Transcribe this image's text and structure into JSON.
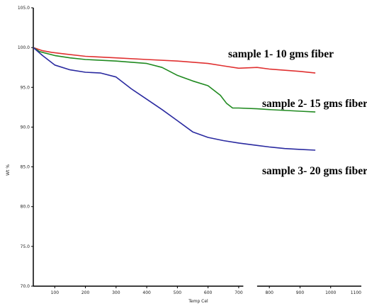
{
  "chart_data": {
    "type": "line",
    "title": "",
    "xlabel": "Temp Cel",
    "ylabel": "Wt %",
    "xlim": [
      30,
      1100
    ],
    "ylim": [
      70.0,
      105.0
    ],
    "x_ticks": [
      100,
      200,
      300,
      400,
      500,
      600,
      700,
      800,
      900,
      1000,
      1100
    ],
    "y_ticks": [
      70.0,
      75.0,
      80.0,
      85.0,
      90.0,
      95.0,
      100.0,
      105.0
    ],
    "x_tick_labels": [
      "100",
      "200",
      "300",
      "400",
      "500",
      "600",
      "700",
      "800",
      "900",
      "1000",
      "1100"
    ],
    "y_tick_labels": [
      "70.0",
      "75.0",
      "80.0",
      "85.0",
      "90.0",
      "95.0",
      "100.0",
      "105.0"
    ],
    "grid": false,
    "legend": "none",
    "axis_break": [
      715,
      760
    ],
    "series": [
      {
        "name": "sample 1- 10 gms fiber",
        "color": "#e03030",
        "x": [
          30,
          60,
          90,
          130,
          200,
          300,
          400,
          500,
          600,
          650,
          700,
          760,
          800,
          900,
          950
        ],
        "y": [
          100.0,
          99.6,
          99.4,
          99.2,
          98.9,
          98.7,
          98.5,
          98.3,
          98.0,
          97.7,
          97.4,
          97.5,
          97.3,
          97.0,
          96.8
        ]
      },
      {
        "name": "sample 2- 15 gms fiber",
        "color": "#208a20",
        "x": [
          30,
          50,
          100,
          150,
          200,
          300,
          400,
          450,
          500,
          550,
          600,
          640,
          660,
          680,
          700,
          760,
          800,
          900,
          950
        ],
        "y": [
          100.0,
          99.5,
          99.0,
          98.7,
          98.5,
          98.3,
          98.0,
          97.5,
          96.5,
          95.8,
          95.2,
          94.0,
          93.0,
          92.4,
          92.4,
          92.3,
          92.2,
          92.0,
          91.9
        ]
      },
      {
        "name": "sample 3- 20 gms fiber",
        "color": "#2a2aa0",
        "x": [
          30,
          60,
          100,
          150,
          200,
          250,
          300,
          350,
          400,
          450,
          500,
          550,
          600,
          650,
          700,
          760,
          800,
          850,
          900,
          950
        ],
        "y": [
          100.0,
          99.0,
          97.8,
          97.2,
          96.9,
          96.8,
          96.3,
          94.8,
          93.5,
          92.2,
          90.8,
          89.4,
          88.7,
          88.3,
          88.0,
          87.7,
          87.5,
          87.3,
          87.2,
          87.1
        ]
      }
    ],
    "annotations": [
      {
        "text": "sample 1- 10 gms fiber",
        "series": 0
      },
      {
        "text": "sample 2- 15 gms fiber",
        "series": 1
      },
      {
        "text": "sample 3- 20 gms fiber",
        "series": 2
      }
    ]
  }
}
